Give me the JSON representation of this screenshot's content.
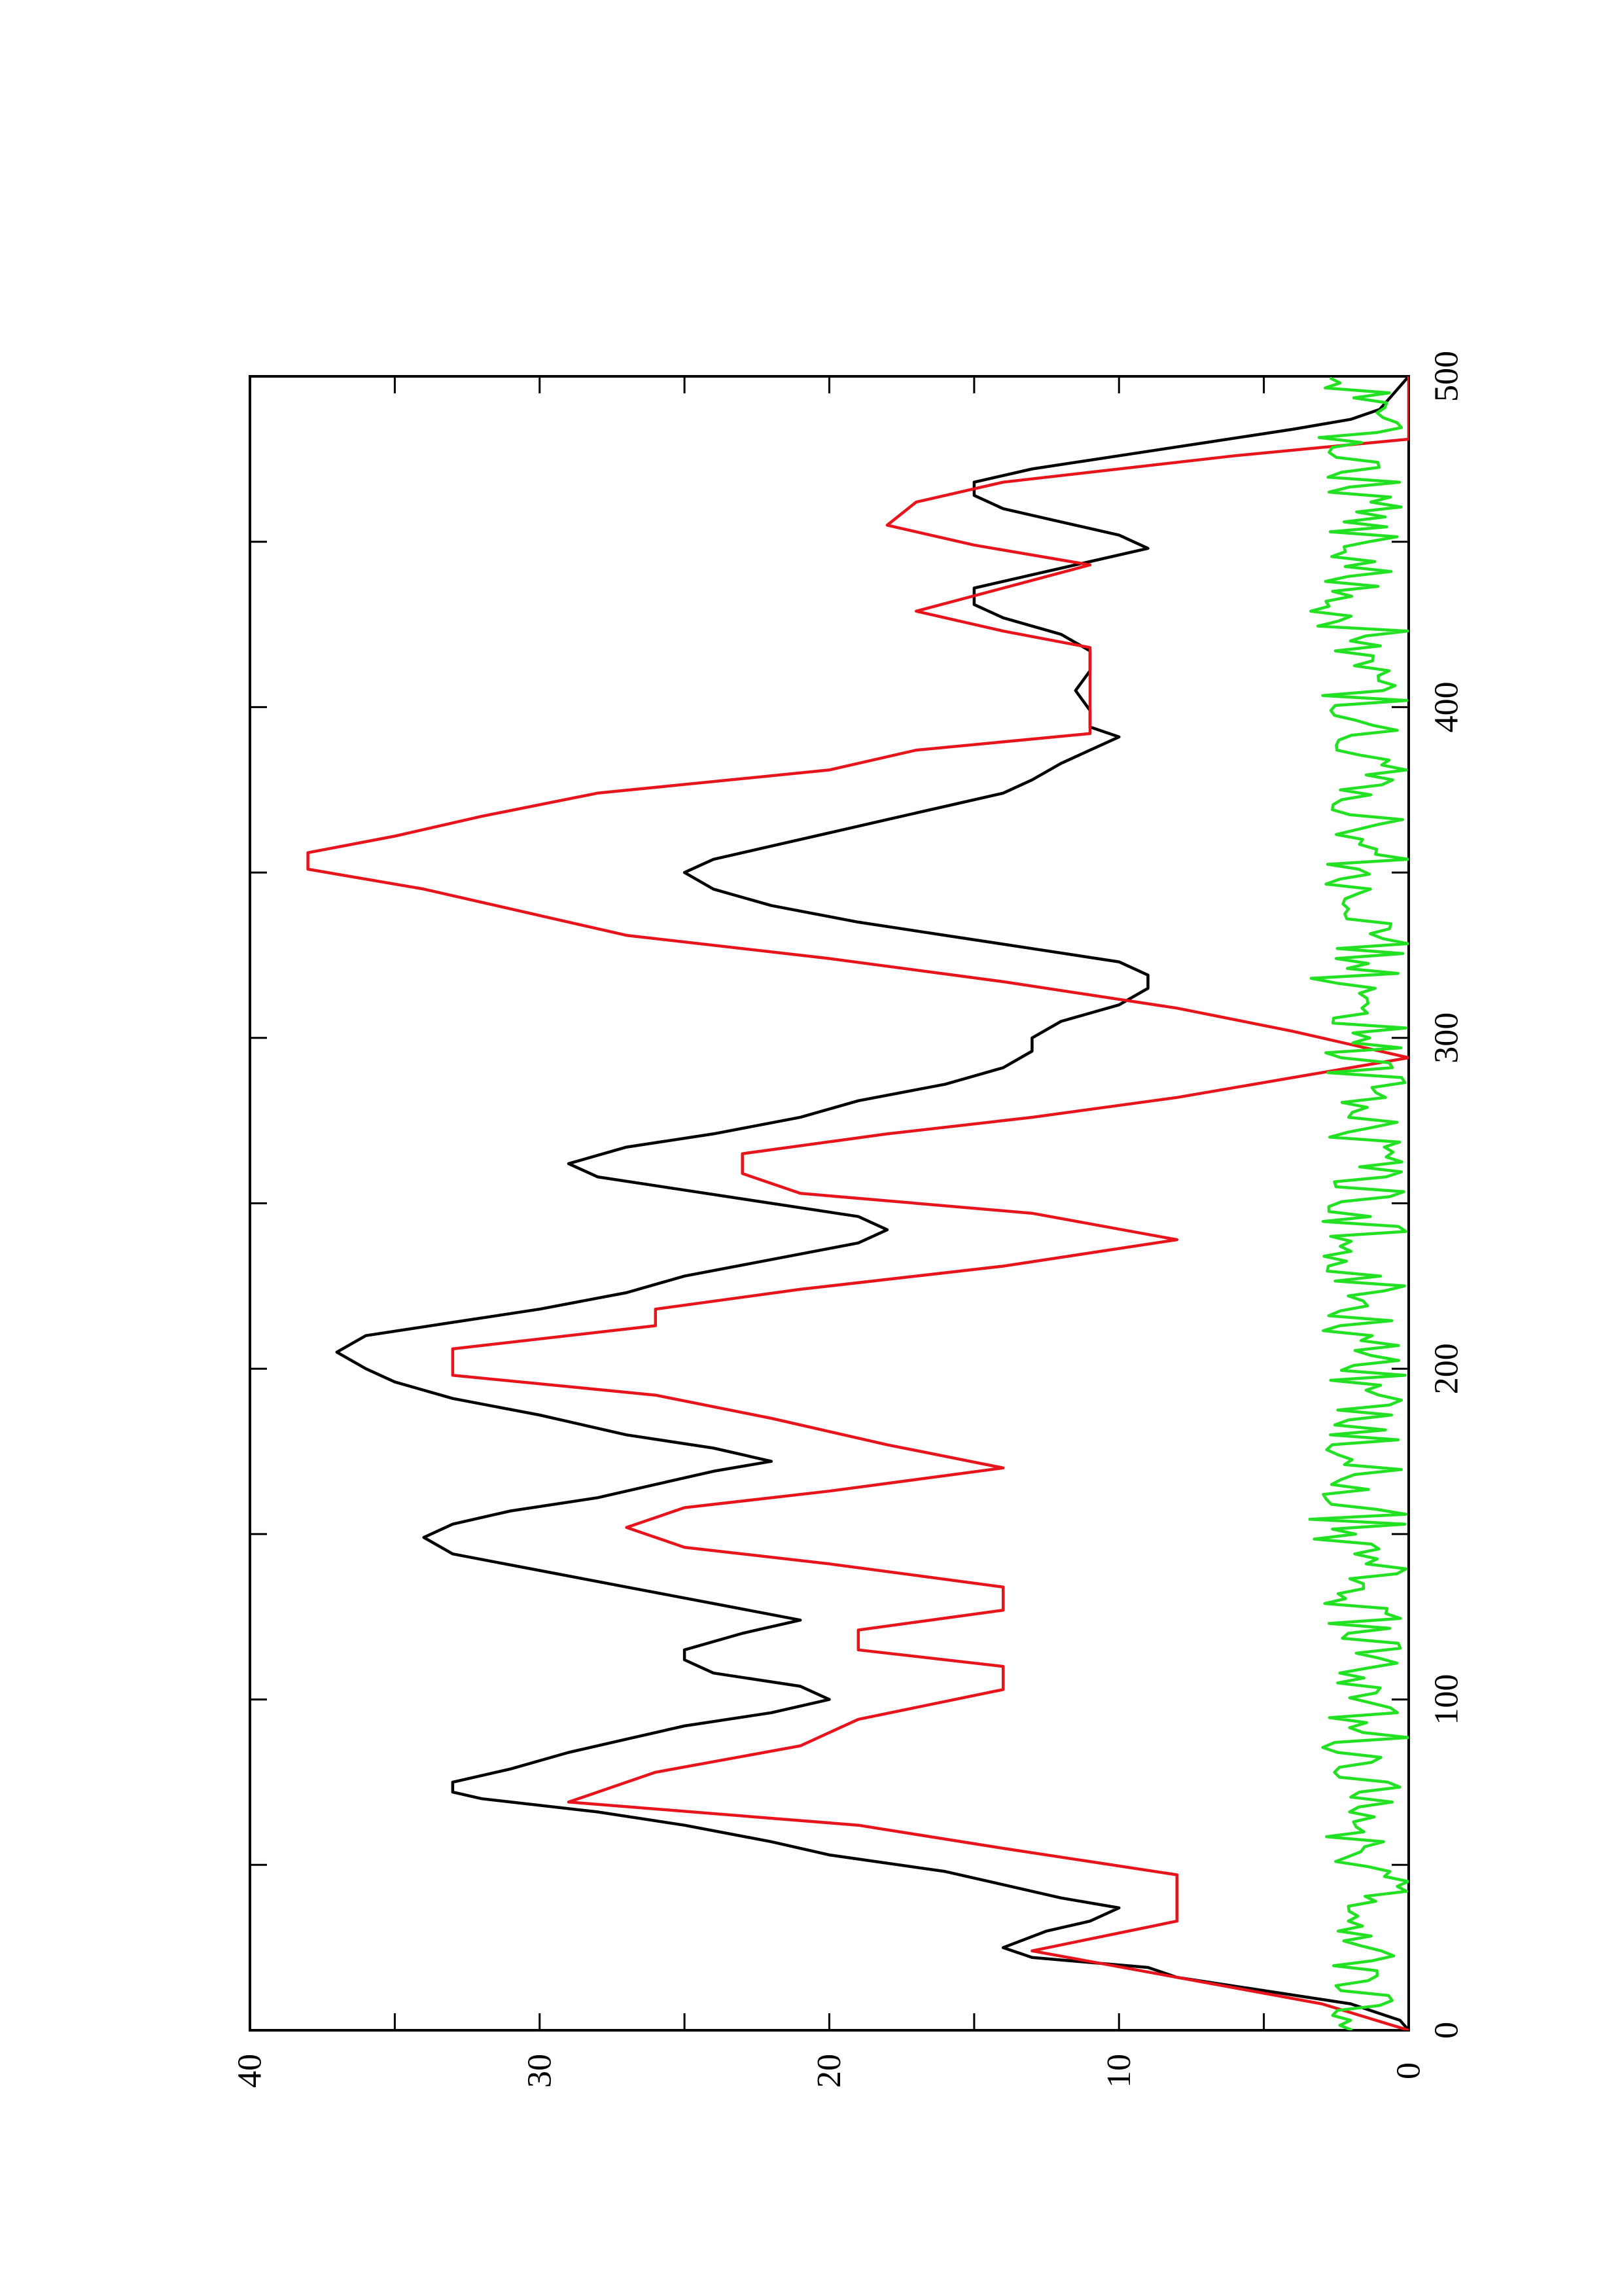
{
  "chart_data": {
    "type": "line",
    "orientation": "rotated-90-ccw",
    "title": "",
    "xlabel": "",
    "ylabel": "",
    "xlim": [
      0,
      500
    ],
    "ylim": [
      0,
      40
    ],
    "x_ticks": [
      0,
      100,
      200,
      300,
      400,
      500
    ],
    "y_ticks": [
      0,
      10,
      20,
      30,
      40
    ],
    "grid": false,
    "legend": "none",
    "series": [
      {
        "color": "#000000",
        "style": "line",
        "points": [
          [
            0,
            0
          ],
          [
            3,
            0.3
          ],
          [
            8,
            2
          ],
          [
            12,
            5
          ],
          [
            16,
            8
          ],
          [
            19,
            9
          ],
          [
            22,
            13
          ],
          [
            25,
            14
          ],
          [
            30,
            12.5
          ],
          [
            33,
            11
          ],
          [
            37,
            10
          ],
          [
            40,
            12
          ],
          [
            44,
            14
          ],
          [
            48,
            16
          ],
          [
            53,
            20
          ],
          [
            57,
            22
          ],
          [
            62,
            25
          ],
          [
            66,
            28
          ],
          [
            70,
            32
          ],
          [
            72,
            33
          ],
          [
            75,
            33
          ],
          [
            79,
            31
          ],
          [
            84,
            29
          ],
          [
            88,
            27
          ],
          [
            92,
            25
          ],
          [
            96,
            22
          ],
          [
            100,
            20
          ],
          [
            104,
            21
          ],
          [
            108,
            24
          ],
          [
            112,
            25
          ],
          [
            115,
            25
          ],
          [
            120,
            23
          ],
          [
            124,
            21
          ],
          [
            129,
            24
          ],
          [
            134,
            27
          ],
          [
            139,
            30
          ],
          [
            144,
            33
          ],
          [
            149,
            34
          ],
          [
            153,
            33
          ],
          [
            157,
            31
          ],
          [
            161,
            28
          ],
          [
            165,
            26
          ],
          [
            169,
            24
          ],
          [
            172,
            22
          ],
          [
            176,
            24
          ],
          [
            180,
            27
          ],
          [
            186,
            30
          ],
          [
            191,
            33
          ],
          [
            196,
            35
          ],
          [
            200,
            36
          ],
          [
            205,
            37
          ],
          [
            210,
            36
          ],
          [
            214,
            33
          ],
          [
            218,
            30
          ],
          [
            223,
            27
          ],
          [
            228,
            25
          ],
          [
            233,
            22
          ],
          [
            238,
            19
          ],
          [
            242,
            18
          ],
          [
            246,
            19
          ],
          [
            250,
            22
          ],
          [
            254,
            25
          ],
          [
            258,
            28
          ],
          [
            262,
            29
          ],
          [
            267,
            27
          ],
          [
            271,
            24
          ],
          [
            276,
            21
          ],
          [
            281,
            19
          ],
          [
            286,
            16
          ],
          [
            291,
            14
          ],
          [
            296,
            13
          ],
          [
            300,
            13
          ],
          [
            305,
            12
          ],
          [
            310,
            10
          ],
          [
            315,
            9
          ],
          [
            319,
            9
          ],
          [
            323,
            10
          ],
          [
            327,
            13
          ],
          [
            331,
            16
          ],
          [
            335,
            19
          ],
          [
            340,
            22
          ],
          [
            345,
            24
          ],
          [
            350,
            25
          ],
          [
            354,
            24
          ],
          [
            358,
            22
          ],
          [
            362,
            20
          ],
          [
            366,
            18
          ],
          [
            370,
            16
          ],
          [
            374,
            14
          ],
          [
            378,
            13
          ],
          [
            383,
            12
          ],
          [
            387,
            11
          ],
          [
            391,
            10
          ],
          [
            394,
            11
          ],
          [
            399,
            11
          ],
          [
            405,
            11.5
          ],
          [
            411,
            11
          ],
          [
            417,
            11
          ],
          [
            422,
            12
          ],
          [
            427,
            14
          ],
          [
            431,
            15
          ],
          [
            436,
            15
          ],
          [
            440,
            13
          ],
          [
            444,
            11
          ],
          [
            448,
            9
          ],
          [
            452,
            10
          ],
          [
            456,
            12
          ],
          [
            460,
            14
          ],
          [
            464,
            15
          ],
          [
            468,
            15
          ],
          [
            472,
            13
          ],
          [
            476,
            10
          ],
          [
            480,
            7
          ],
          [
            484,
            4
          ],
          [
            487,
            2
          ],
          [
            490,
            1
          ],
          [
            495,
            0.5
          ],
          [
            500,
            0
          ]
        ]
      },
      {
        "color": "#e8141c",
        "style": "step-line",
        "points": [
          [
            0,
            0
          ],
          [
            8,
            3
          ],
          [
            16,
            8
          ],
          [
            24,
            13
          ],
          [
            33,
            8
          ],
          [
            47,
            8
          ],
          [
            55,
            14
          ],
          [
            62,
            19
          ],
          [
            69,
            29
          ],
          [
            78,
            26
          ],
          [
            86,
            21
          ],
          [
            94,
            19
          ],
          [
            103,
            14
          ],
          [
            110,
            14
          ],
          [
            115,
            19
          ],
          [
            121,
            19
          ],
          [
            127,
            14
          ],
          [
            134,
            14
          ],
          [
            141,
            20
          ],
          [
            146,
            25
          ],
          [
            152,
            27
          ],
          [
            158,
            25
          ],
          [
            163,
            20
          ],
          [
            170,
            14
          ],
          [
            177,
            18
          ],
          [
            185,
            22
          ],
          [
            192,
            26
          ],
          [
            198,
            33
          ],
          [
            206,
            33
          ],
          [
            213,
            26
          ],
          [
            218,
            26
          ],
          [
            224,
            21
          ],
          [
            231,
            14
          ],
          [
            239,
            8
          ],
          [
            247,
            13
          ],
          [
            253,
            21
          ],
          [
            259,
            23
          ],
          [
            265,
            23
          ],
          [
            271,
            18
          ],
          [
            276,
            13
          ],
          [
            282,
            8
          ],
          [
            288,
            4
          ],
          [
            294,
            0
          ],
          [
            302,
            4
          ],
          [
            309,
            8
          ],
          [
            317,
            14
          ],
          [
            324,
            20
          ],
          [
            331,
            27
          ],
          [
            339,
            31
          ],
          [
            345,
            34
          ],
          [
            351,
            38
          ],
          [
            356,
            38
          ],
          [
            361,
            35
          ],
          [
            367,
            32
          ],
          [
            374,
            28
          ],
          [
            381,
            20
          ],
          [
            387,
            17
          ],
          [
            392,
            11
          ],
          [
            400,
            11
          ],
          [
            410,
            11
          ],
          [
            418,
            11
          ],
          [
            423,
            14
          ],
          [
            429,
            17
          ],
          [
            436,
            14
          ],
          [
            443,
            11
          ],
          [
            449,
            15
          ],
          [
            455,
            18
          ],
          [
            462,
            17
          ],
          [
            468,
            14
          ],
          [
            476,
            6
          ],
          [
            481,
            0
          ],
          [
            500,
            0
          ]
        ]
      },
      {
        "color": "#22e022",
        "style": "noise",
        "range": [
          0,
          3.5
        ]
      }
    ]
  }
}
